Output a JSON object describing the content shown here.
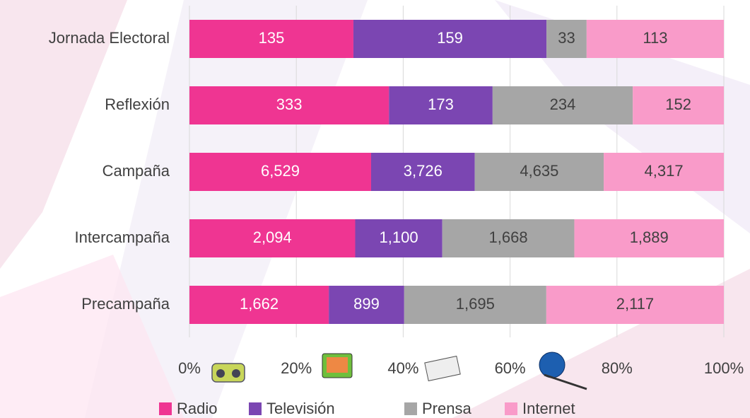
{
  "chart_data": {
    "type": "bar100h",
    "categories": [
      "Jornada Electoral",
      "Reflexión",
      "Campaña",
      "Intercampaña",
      "Precampaña"
    ],
    "series": [
      {
        "name": "Radio",
        "color": "#ef3592",
        "values": [
          135,
          333,
          6529,
          2094,
          1662
        ],
        "value_labels": [
          "135",
          "333",
          "6,529",
          "2,094",
          "1,662"
        ]
      },
      {
        "name": "Televisión",
        "color": "#7b46b2",
        "values": [
          159,
          173,
          3726,
          1100,
          899
        ],
        "value_labels": [
          "159",
          "173",
          "3,726",
          "1,100",
          "899"
        ]
      },
      {
        "name": "Prensa",
        "color": "#a6a6a6",
        "values": [
          33,
          234,
          4635,
          1668,
          1695
        ],
        "value_labels": [
          "33",
          "234",
          "4,635",
          "1,668",
          "1,695"
        ]
      },
      {
        "name": "Internet",
        "color": "#f99bc9",
        "values": [
          113,
          152,
          4317,
          1889,
          2117
        ],
        "value_labels": [
          "113",
          "152",
          "4,317",
          "1,889",
          "2,117"
        ]
      }
    ],
    "xlim": [
      0,
      100
    ],
    "xticks": [
      {
        "value": 0,
        "label": "0%"
      },
      {
        "value": 20,
        "label": "20%"
      },
      {
        "value": 40,
        "label": "40%"
      },
      {
        "value": 60,
        "label": "60%"
      },
      {
        "value": 80,
        "label": "80%"
      },
      {
        "value": 100,
        "label": "100%"
      }
    ],
    "grid": true,
    "legend": "bottom"
  }
}
